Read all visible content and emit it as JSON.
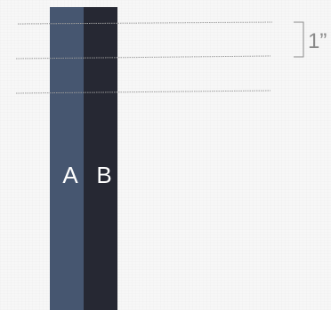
{
  "strips": [
    {
      "label": "A",
      "color": "#465670"
    },
    {
      "label": "B",
      "color": "#262833"
    }
  ],
  "dimension": {
    "label": "1”",
    "color": "#8a8a8a"
  },
  "guide_line_color": "#9a9a9a",
  "background_color": "#f7f7f7"
}
